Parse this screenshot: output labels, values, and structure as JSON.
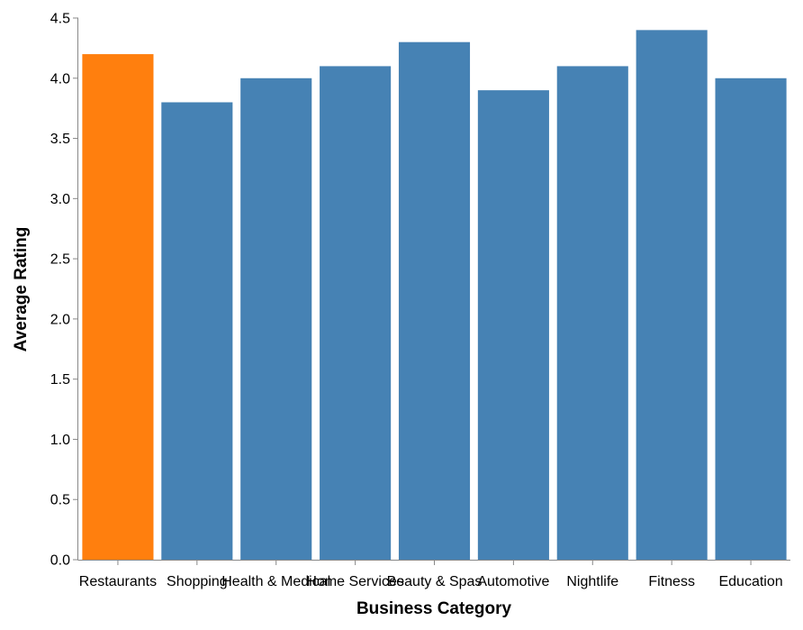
{
  "chart_data": {
    "type": "bar",
    "xlabel": "Business Category",
    "ylabel": "Average Rating",
    "ylim": [
      0,
      4.5
    ],
    "yticks": [
      "0.0",
      "0.5",
      "1.0",
      "1.5",
      "2.0",
      "2.5",
      "3.0",
      "3.5",
      "4.0",
      "4.5"
    ],
    "categories": [
      "Restaurants",
      "Shopping",
      "Health & Medical",
      "Home Services",
      "Beauty & Spas",
      "Automotive",
      "Nightlife",
      "Fitness",
      "Education"
    ],
    "values": [
      4.2,
      3.8,
      4.0,
      4.1,
      4.3,
      3.9,
      4.1,
      4.4,
      4.0
    ],
    "highlight_category": "Restaurants",
    "colors": {
      "default": "#4682b4",
      "highlight": "#ff7f0e",
      "axis": "#888888"
    },
    "grid": false,
    "legend": "none"
  }
}
